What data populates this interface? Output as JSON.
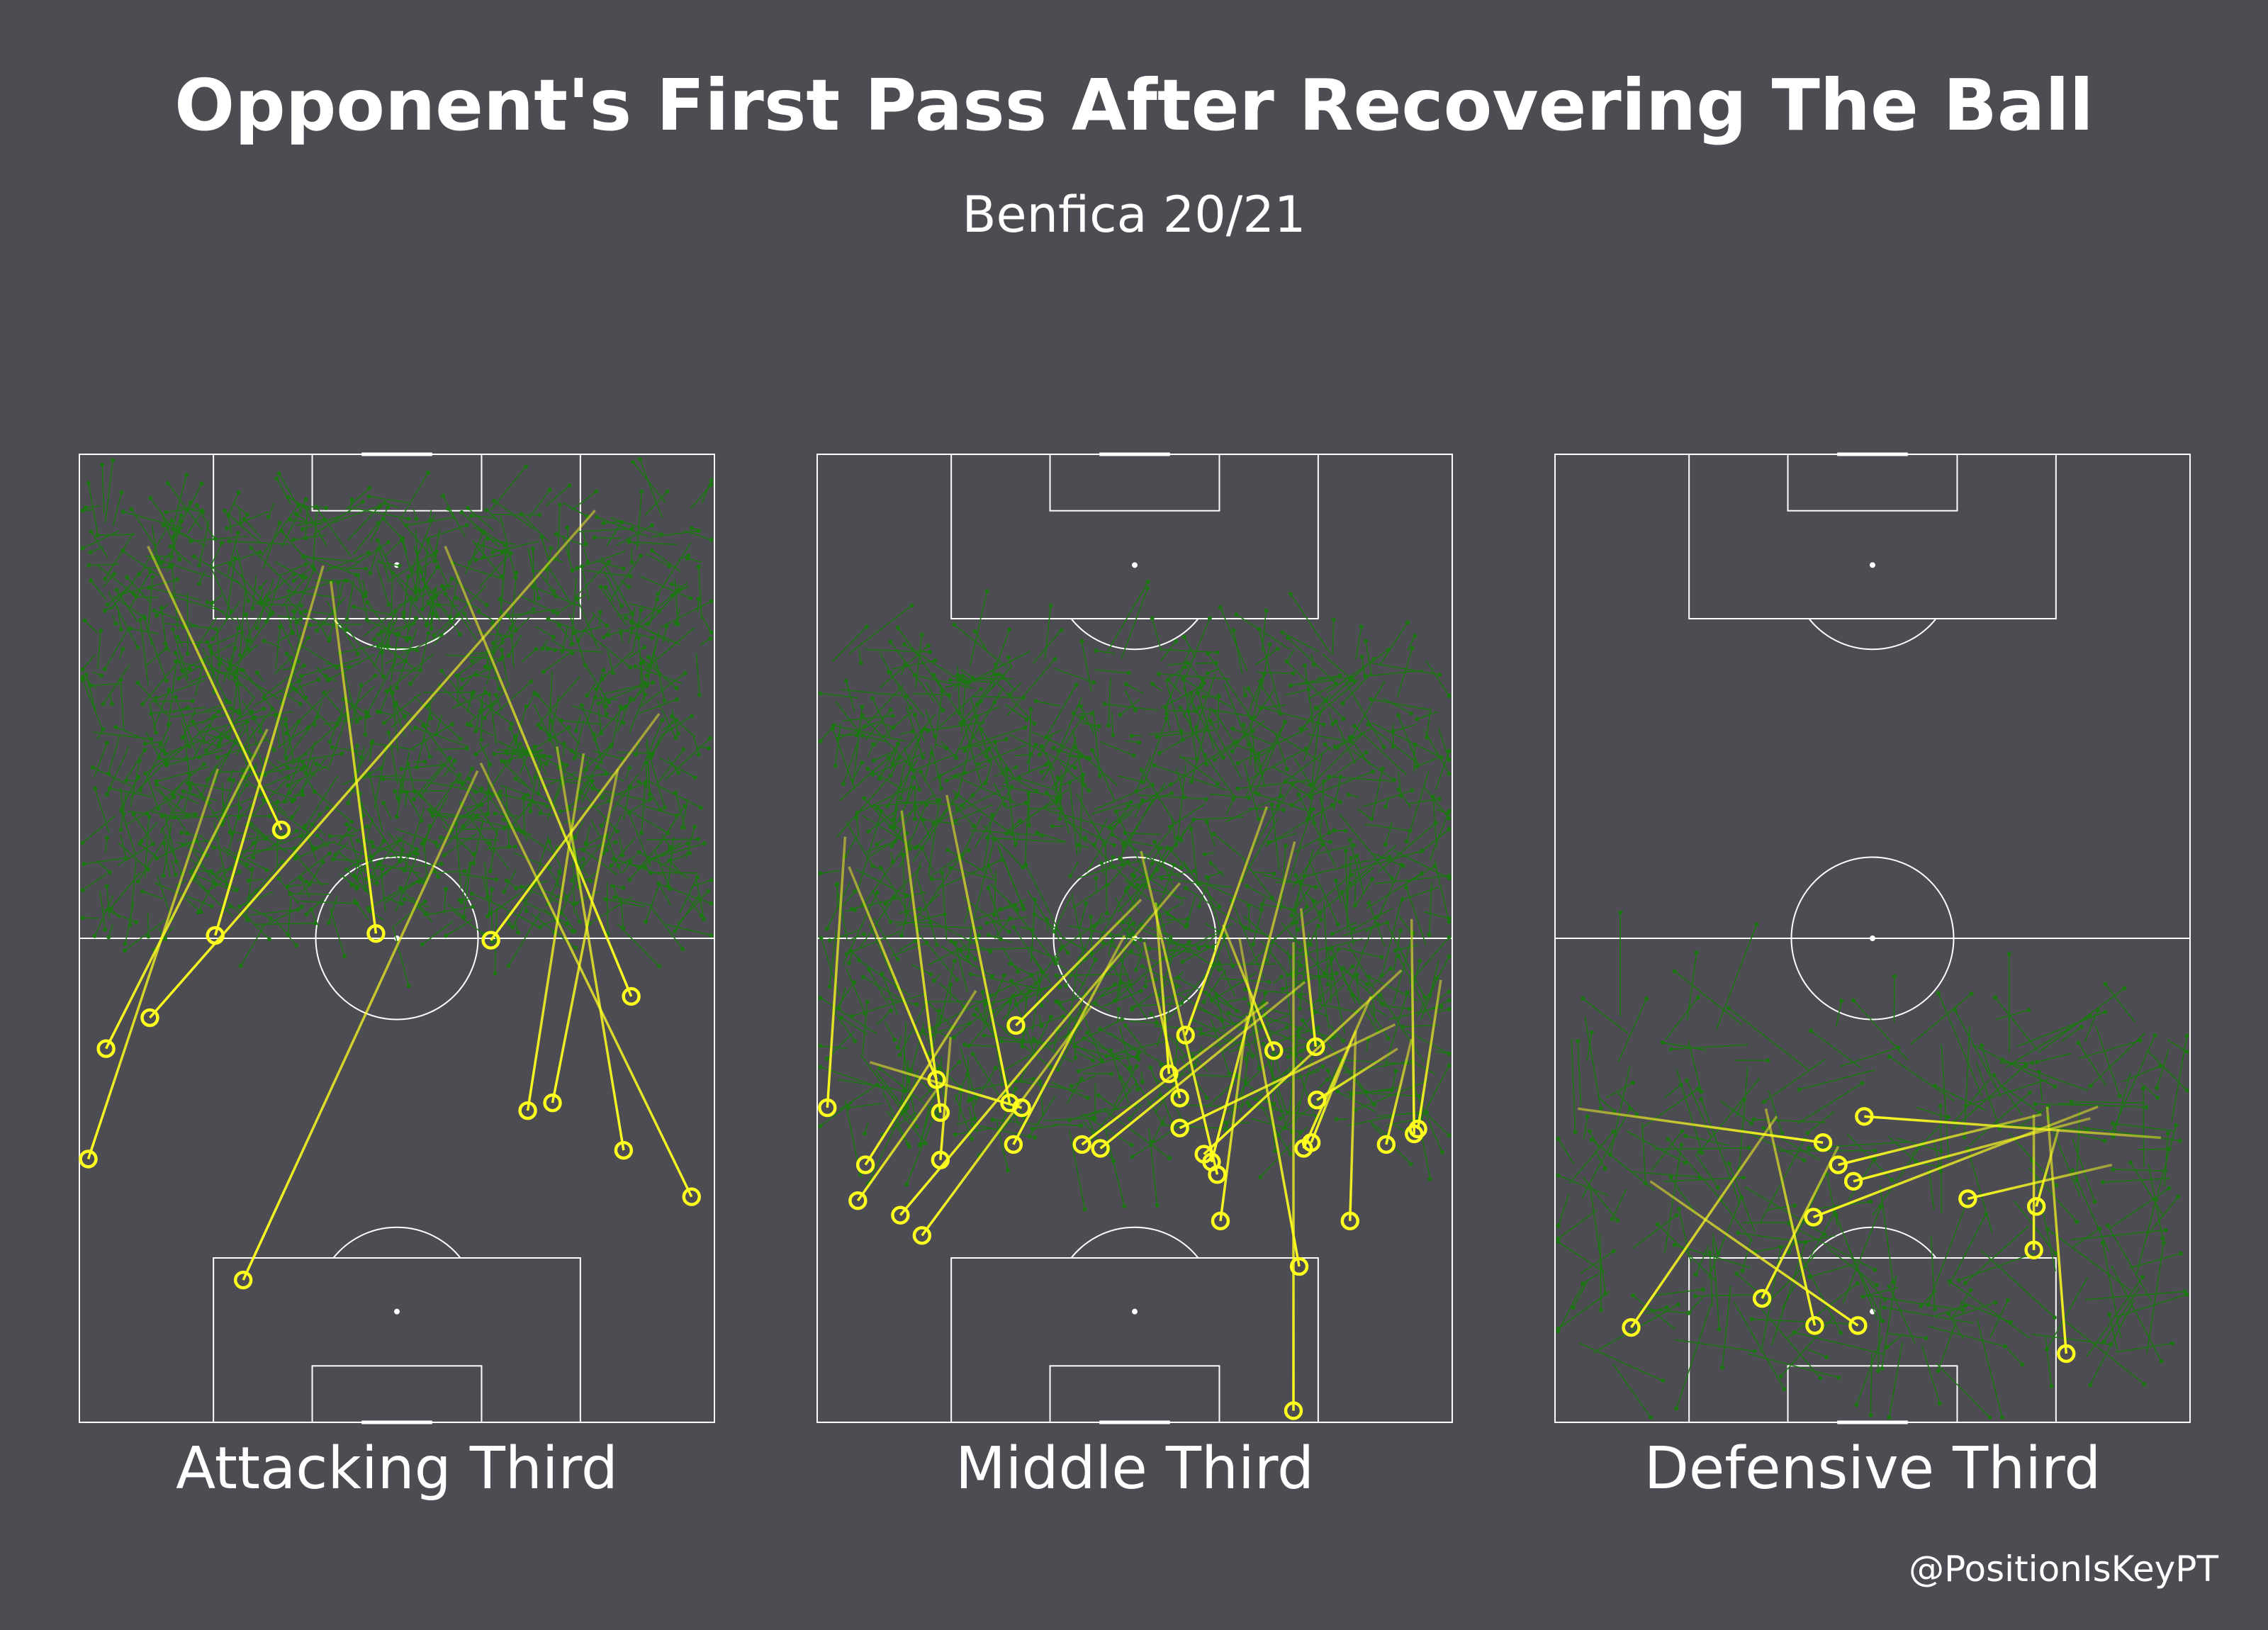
{
  "title": "Opponent's First Pass After Recovering The Ball",
  "subtitle": "Benfica 20/21",
  "credit": "@PositionIsKeyPT",
  "colors": {
    "background": "#4d4c52",
    "pitch_lines": "#ffffff",
    "other_passes": "#1a7a10",
    "highlighted_passes": "#ffff1f"
  },
  "chart_data": [
    {
      "type": "scatter",
      "label": "Attacking Third",
      "x_range": [
        0,
        100
      ],
      "y_range": [
        0,
        100
      ],
      "background_density": {
        "count": 1100,
        "zone_y": [
          51,
          95
        ],
        "length_range": [
          1,
          7
        ]
      },
      "highlighted_passes": [
        {
          "end": [
            31.8,
            61.2
          ],
          "start": [
            10.8,
            90.5
          ]
        },
        {
          "end": [
            21.4,
            50.3
          ],
          "start": [
            38.4,
            88.5
          ]
        },
        {
          "end": [
            11.1,
            41.8
          ],
          "start": [
            81.2,
            94.2
          ]
        },
        {
          "end": [
            4.2,
            38.6
          ],
          "start": [
            29.6,
            71.6
          ]
        },
        {
          "end": [
            1.4,
            27.2
          ],
          "start": [
            21.8,
            67.5
          ]
        },
        {
          "end": [
            46.7,
            50.5
          ],
          "start": [
            39.6,
            86.9
          ]
        },
        {
          "end": [
            25.8,
            14.7
          ],
          "start": [
            62.7,
            67.3
          ]
        },
        {
          "end": [
            64.8,
            49.8
          ],
          "start": [
            91.3,
            73.2
          ]
        },
        {
          "end": [
            86.9,
            44.0
          ],
          "start": [
            57.6,
            90.5
          ]
        },
        {
          "end": [
            70.6,
            32.2
          ],
          "start": [
            79.4,
            69.1
          ]
        },
        {
          "end": [
            74.5,
            33.0
          ],
          "start": [
            84.8,
            67.5
          ]
        },
        {
          "end": [
            85.7,
            28.1
          ],
          "start": [
            75.2,
            69.8
          ]
        },
        {
          "end": [
            96.4,
            23.3
          ],
          "start": [
            63.2,
            68.1
          ]
        }
      ]
    },
    {
      "type": "scatter",
      "label": "Middle Third",
      "x_range": [
        0,
        100
      ],
      "y_range": [
        0,
        100
      ],
      "background_density": {
        "count": 1000,
        "zone_y": [
          30,
          80
        ],
        "length_range": [
          1,
          9
        ]
      },
      "highlighted_passes": [
        {
          "end": [
            1.6,
            32.5
          ],
          "start": [
            4.4,
            60.5
          ]
        },
        {
          "end": [
            18.8,
            35.4
          ],
          "start": [
            5.0,
            57.4
          ]
        },
        {
          "end": [
            19.4,
            32.0
          ],
          "start": [
            13.3,
            63.2
          ]
        },
        {
          "end": [
            30.3,
            33.0
          ],
          "start": [
            20.4,
            64.8
          ]
        },
        {
          "end": [
            32.2,
            32.5
          ],
          "start": [
            8.3,
            37.2
          ]
        },
        {
          "end": [
            19.4,
            27.1
          ],
          "start": [
            21.0,
            39.8
          ]
        },
        {
          "end": [
            7.6,
            26.6
          ],
          "start": [
            25.0,
            44.6
          ]
        },
        {
          "end": [
            6.4,
            22.9
          ],
          "start": [
            19.5,
            35.0
          ]
        },
        {
          "end": [
            13.1,
            21.4
          ],
          "start": [
            57.1,
            55.7
          ]
        },
        {
          "end": [
            16.5,
            19.3
          ],
          "start": [
            43.2,
            43.0
          ]
        },
        {
          "end": [
            31.3,
            41.0
          ],
          "start": [
            51.0,
            54.0
          ]
        },
        {
          "end": [
            30.9,
            28.7
          ],
          "start": [
            48.4,
            50.3
          ]
        },
        {
          "end": [
            41.7,
            28.7
          ],
          "start": [
            71.0,
            43.4
          ]
        },
        {
          "end": [
            44.6,
            28.3
          ],
          "start": [
            76.8,
            45.5
          ]
        },
        {
          "end": [
            55.4,
            36.0
          ],
          "start": [
            53.3,
            53.7
          ]
        },
        {
          "end": [
            57.1,
            33.5
          ],
          "start": [
            51.5,
            49.6
          ]
        },
        {
          "end": [
            57.1,
            30.4
          ],
          "start": [
            91.0,
            41.1
          ]
        },
        {
          "end": [
            60.9,
            27.7
          ],
          "start": [
            92.0,
            46.7
          ]
        },
        {
          "end": [
            62.1,
            26.9
          ],
          "start": [
            75.2,
            60.0
          ]
        },
        {
          "end": [
            63.0,
            25.6
          ],
          "start": [
            51.0,
            59.0
          ]
        },
        {
          "end": [
            58.0,
            40.0
          ],
          "start": [
            70.8,
            63.6
          ]
        },
        {
          "end": [
            63.5,
            20.8
          ],
          "start": [
            67.7,
            42.0
          ]
        },
        {
          "end": [
            71.9,
            38.4
          ],
          "start": [
            63.9,
            51.4
          ]
        },
        {
          "end": [
            78.5,
            38.8
          ],
          "start": [
            76.2,
            53.1
          ]
        },
        {
          "end": [
            78.7,
            33.3
          ],
          "start": [
            91.4,
            38.6
          ]
        },
        {
          "end": [
            77.8,
            28.9
          ],
          "start": [
            84.7,
            40.3
          ]
        },
        {
          "end": [
            76.6,
            28.3
          ],
          "start": [
            87.2,
            44.0
          ]
        },
        {
          "end": [
            75.9,
            16.1
          ],
          "start": [
            66.5,
            50.0
          ]
        },
        {
          "end": [
            75.0,
            1.2
          ],
          "start": [
            75.0,
            49.6
          ]
        },
        {
          "end": [
            83.9,
            20.8
          ],
          "start": [
            84.8,
            40.5
          ]
        },
        {
          "end": [
            89.6,
            28.7
          ],
          "start": [
            93.6,
            39.6
          ]
        },
        {
          "end": [
            94.0,
            29.8
          ],
          "start": [
            93.6,
            52.0
          ]
        },
        {
          "end": [
            94.6,
            30.3
          ],
          "start": [
            98.2,
            45.7
          ]
        }
      ]
    },
    {
      "type": "scatter",
      "label": "Defensive Third",
      "x_range": [
        0,
        100
      ],
      "y_range": [
        0,
        100
      ],
      "background_density": {
        "count": 260,
        "zone_y": [
          6,
          42
        ],
        "length_range": [
          2,
          12
        ]
      },
      "highlighted_passes": [
        {
          "end": [
            42.2,
            28.9
          ],
          "start": [
            3.6,
            32.4
          ]
        },
        {
          "end": [
            48.7,
            31.6
          ],
          "start": [
            95.4,
            29.4
          ]
        },
        {
          "end": [
            44.6,
            26.6
          ],
          "start": [
            76.6,
            31.8
          ]
        },
        {
          "end": [
            47.0,
            24.9
          ],
          "start": [
            84.3,
            31.4
          ]
        },
        {
          "end": [
            40.7,
            21.2
          ],
          "start": [
            85.5,
            32.6
          ]
        },
        {
          "end": [
            12.0,
            9.8
          ],
          "start": [
            34.9,
            31.6
          ]
        },
        {
          "end": [
            32.6,
            12.8
          ],
          "start": [
            44.6,
            28.5
          ]
        },
        {
          "end": [
            40.9,
            10.0
          ],
          "start": [
            33.2,
            32.4
          ]
        },
        {
          "end": [
            47.7,
            10.0
          ],
          "start": [
            15.0,
            24.9
          ]
        },
        {
          "end": [
            65.0,
            23.1
          ],
          "start": [
            87.7,
            26.6
          ]
        },
        {
          "end": [
            75.4,
            17.8
          ],
          "start": [
            75.4,
            31.8
          ]
        },
        {
          "end": [
            75.8,
            22.3
          ],
          "start": [
            79.3,
            30.3
          ]
        },
        {
          "end": [
            80.5,
            7.1
          ],
          "start": [
            77.5,
            32.6
          ]
        }
      ]
    }
  ]
}
